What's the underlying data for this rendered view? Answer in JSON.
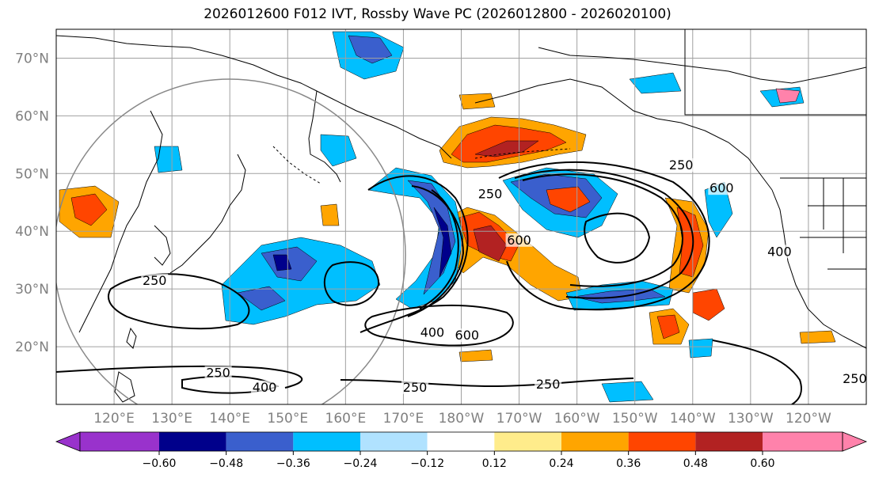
{
  "title": "2026012600 F012 IVT, Rossby Wave PC (2026012800 - 2026020100)",
  "map": {
    "lat_labels": [
      {
        "lat": 70,
        "text": "70°N"
      },
      {
        "lat": 60,
        "text": "60°N"
      },
      {
        "lat": 50,
        "text": "50°N"
      },
      {
        "lat": 40,
        "text": "40°N"
      },
      {
        "lat": 30,
        "text": "30°N"
      },
      {
        "lat": 20,
        "text": "20°N"
      }
    ],
    "lon_labels": [
      {
        "lon": 120,
        "text": "120°E"
      },
      {
        "lon": 130,
        "text": "130°E"
      },
      {
        "lon": 140,
        "text": "140°E"
      },
      {
        "lon": 150,
        "text": "150°E"
      },
      {
        "lon": 160,
        "text": "160°E"
      },
      {
        "lon": 170,
        "text": "170°E"
      },
      {
        "lon": 180,
        "text": "180°W"
      },
      {
        "lon": 190,
        "text": "170°W"
      },
      {
        "lon": 200,
        "text": "160°W"
      },
      {
        "lon": 210,
        "text": "150°W"
      },
      {
        "lon": 220,
        "text": "140°W"
      },
      {
        "lon": 230,
        "text": "130°W"
      },
      {
        "lon": 240,
        "text": "120°W"
      }
    ],
    "contour_labels": [
      {
        "text": "250",
        "lon": 218,
        "lat": 51
      },
      {
        "text": "600",
        "lon": 225,
        "lat": 47
      },
      {
        "text": "250",
        "lon": 185,
        "lat": 46
      },
      {
        "text": "600",
        "lon": 190,
        "lat": 38
      },
      {
        "text": "400",
        "lon": 235,
        "lat": 36
      },
      {
        "text": "400",
        "lon": 175,
        "lat": 22
      },
      {
        "text": "600",
        "lon": 181,
        "lat": 21.5
      },
      {
        "text": "250",
        "lon": 127,
        "lat": 31
      },
      {
        "text": "250",
        "lon": 138,
        "lat": 15
      },
      {
        "text": "400",
        "lon": 146,
        "lat": 12.5
      },
      {
        "text": "250",
        "lon": 172,
        "lat": 12.5
      },
      {
        "text": "250",
        "lon": 195,
        "lat": 13
      },
      {
        "text": "250",
        "lon": 248,
        "lat": 14
      }
    ]
  },
  "colorbar": {
    "colors": [
      "#9932cc",
      "#00008b",
      "#3a5fcd",
      "#00bfff",
      "#b0e2ff",
      "#ffffff",
      "#ffec8b",
      "#ffa500",
      "#ff4500",
      "#b22222",
      "#ff82ab"
    ],
    "tick_labels": [
      "−0.60",
      "−0.48",
      "−0.36",
      "−0.24",
      "−0.12",
      "0.12",
      "0.24",
      "0.36",
      "0.48",
      "0.60"
    ]
  }
}
